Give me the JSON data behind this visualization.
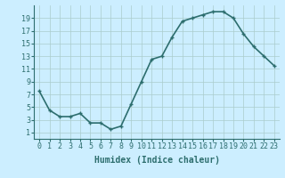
{
  "x": [
    0,
    1,
    2,
    3,
    4,
    5,
    6,
    7,
    8,
    9,
    10,
    11,
    12,
    13,
    14,
    15,
    16,
    17,
    18,
    19,
    20,
    21,
    22,
    23
  ],
  "y": [
    7.5,
    4.5,
    3.5,
    3.5,
    4.0,
    2.5,
    2.5,
    1.5,
    2.0,
    5.5,
    9.0,
    12.5,
    13.0,
    16.0,
    18.5,
    19.0,
    19.5,
    20.0,
    20.0,
    19.0,
    16.5,
    14.5,
    13.0,
    11.5
  ],
  "line_color": "#2d6e6e",
  "marker": "+",
  "marker_size": 3,
  "marker_edge_width": 1.0,
  "background_color": "#cceeff",
  "grid_color": "#aacccc",
  "xlabel": "Humidex (Indice chaleur)",
  "xlabel_fontsize": 7,
  "yticks": [
    1,
    3,
    5,
    7,
    9,
    11,
    13,
    15,
    17,
    19
  ],
  "xticks": [
    0,
    1,
    2,
    3,
    4,
    5,
    6,
    7,
    8,
    9,
    10,
    11,
    12,
    13,
    14,
    15,
    16,
    17,
    18,
    19,
    20,
    21,
    22,
    23
  ],
  "xlim": [
    -0.5,
    23.5
  ],
  "ylim": [
    0,
    21
  ],
  "tick_fontsize": 6,
  "line_width": 1.2,
  "fig_width": 3.2,
  "fig_height": 2.0,
  "dpi": 100
}
